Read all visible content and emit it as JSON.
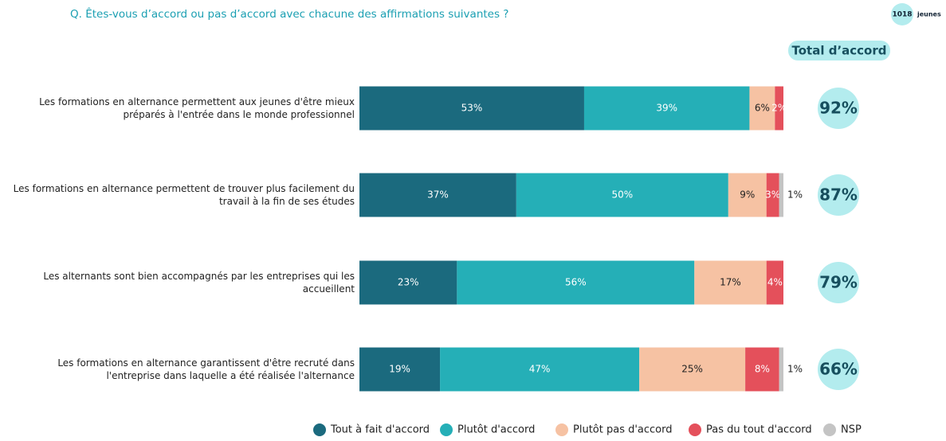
{
  "chart_data": {
    "type": "stacked-bar-horizontal",
    "title": "Q. Êtes-vous d’accord ou pas d’accord avec chacune des affirmations suivantes ?",
    "badge": {
      "count": "1018",
      "unit": "jeunes"
    },
    "categories": [
      "Les formations en alternance permettent aux jeunes d'être mieux préparés à l'entrée dans le monde professionnel",
      "Les formations en alternance permettent de trouver plus facilement du travail à la fin de ses études",
      "Les alternants sont bien accompagnés par les entreprises qui les accueillent",
      "Les formations en alternance garantissent d'être recruté dans l'entreprise dans laquelle a été réalisée l'alternance"
    ],
    "xlim": [
      0,
      100
    ],
    "series": [
      {
        "name": "Tout à fait d'accord",
        "color": "#1b6a7e",
        "values": [
          53,
          37,
          23,
          19
        ],
        "value_labels": [
          "53%",
          "37%",
          "23%",
          "19%"
        ]
      },
      {
        "name": "Plutôt d'accord",
        "color": "#25afb7",
        "values": [
          39,
          50,
          56,
          47
        ],
        "value_labels": [
          "39%",
          "50%",
          "56%",
          "47%"
        ]
      },
      {
        "name": "Plutôt pas d'accord",
        "color": "#f6c2a3",
        "values": [
          6,
          9,
          17,
          25
        ],
        "value_labels": [
          "6%",
          "9%",
          "17%",
          "25%"
        ]
      },
      {
        "name": "Pas du tout d'accord",
        "color": "#e4505b",
        "values": [
          2,
          3,
          4,
          8
        ],
        "value_labels": [
          "2%",
          "3%",
          "4%",
          "8%"
        ]
      },
      {
        "name": "NSP",
        "color": "#c4c4c4",
        "values": [
          null,
          1,
          null,
          1
        ],
        "value_labels": [
          null,
          "1%",
          null,
          "1%"
        ]
      }
    ],
    "totals": {
      "header": "Total d’accord",
      "values": [
        92,
        87,
        79,
        66
      ],
      "value_labels": [
        "92%",
        "87%",
        "79%",
        "66%"
      ]
    },
    "legend": "bottom"
  }
}
